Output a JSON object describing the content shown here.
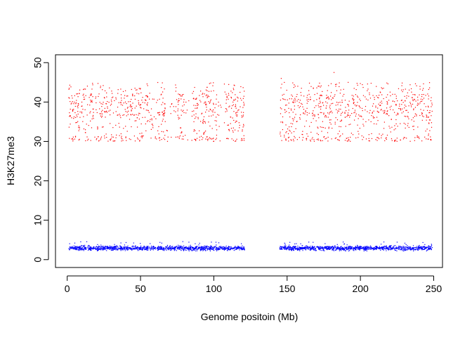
{
  "chart_data": {
    "type": "scatter",
    "title": "",
    "xlabel": "Genome positoin (Mb)",
    "ylabel": "H3K27me3",
    "xlim": [
      -8,
      256
    ],
    "ylim": [
      -2,
      52
    ],
    "x_ticks": [
      0,
      50,
      100,
      150,
      200,
      250
    ],
    "y_ticks": [
      0,
      10,
      20,
      30,
      40,
      50
    ],
    "x_tick_labels": [
      "0",
      "50",
      "100",
      "150",
      "200",
      "250"
    ],
    "y_tick_labels": [
      "0",
      "10",
      "20",
      "30",
      "40",
      "50"
    ],
    "grid": false,
    "legend": "none",
    "series": [
      {
        "color": "#ff0000",
        "x_segments": [
          [
            1,
            121
          ],
          [
            145,
            249
          ]
        ],
        "density_gaps": [
          [
            67,
            73
          ],
          [
            80,
            86
          ],
          [
            102,
            108
          ]
        ],
        "y_range": [
          29,
          46
        ],
        "approx_points": 1500,
        "outliers": [
          {
            "x": 182,
            "y": 47.5
          },
          {
            "x": 146,
            "y": 46
          }
        ]
      },
      {
        "color": "#0000ff",
        "x_segments": [
          [
            1,
            121
          ],
          [
            145,
            249
          ]
        ],
        "y_range": [
          2.2,
          4.6
        ],
        "y_center": 2.9,
        "approx_points": 2200
      }
    ]
  }
}
